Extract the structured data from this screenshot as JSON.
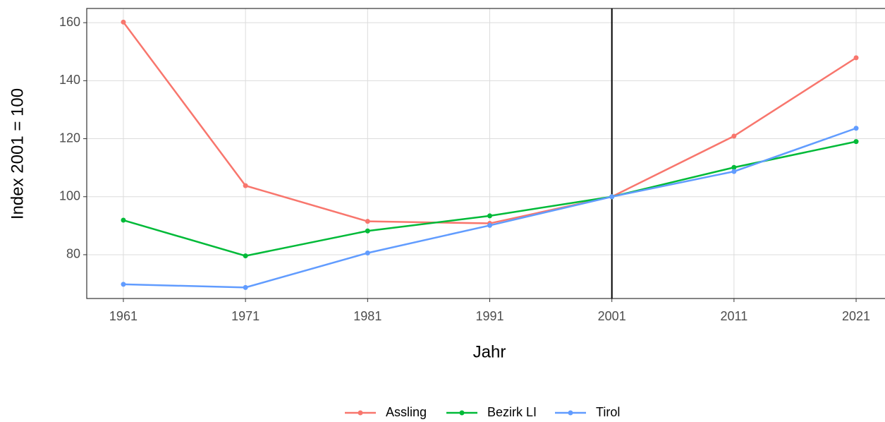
{
  "chart_data": {
    "type": "line",
    "x": [
      1961,
      1971,
      1981,
      1991,
      2001,
      2011,
      2021
    ],
    "series": [
      {
        "name": "Assling",
        "color": "#F8766D",
        "values": [
          160.2,
          103.8,
          91.5,
          90.8,
          100,
          120.9,
          147.9
        ]
      },
      {
        "name": "Bezirk LI",
        "color": "#00BA38",
        "values": [
          91.9,
          79.6,
          88.2,
          93.4,
          100,
          110.1,
          119.0
        ]
      },
      {
        "name": "Tirol",
        "color": "#619CFF",
        "values": [
          69.8,
          68.7,
          80.6,
          90.1,
          100,
          108.7,
          123.6
        ]
      }
    ],
    "xlabel": "Jahr",
    "ylabel": "Index 2001 = 100",
    "xlim": [
      1958,
      2024
    ],
    "xticks": [
      1961,
      1971,
      1981,
      1991,
      2001,
      2011,
      2021
    ],
    "ylim": [
      64.9,
      164.9
    ],
    "yticks": [
      80,
      100,
      120,
      140,
      160
    ],
    "vline": 2001,
    "grid": true,
    "legend": "bottom"
  }
}
